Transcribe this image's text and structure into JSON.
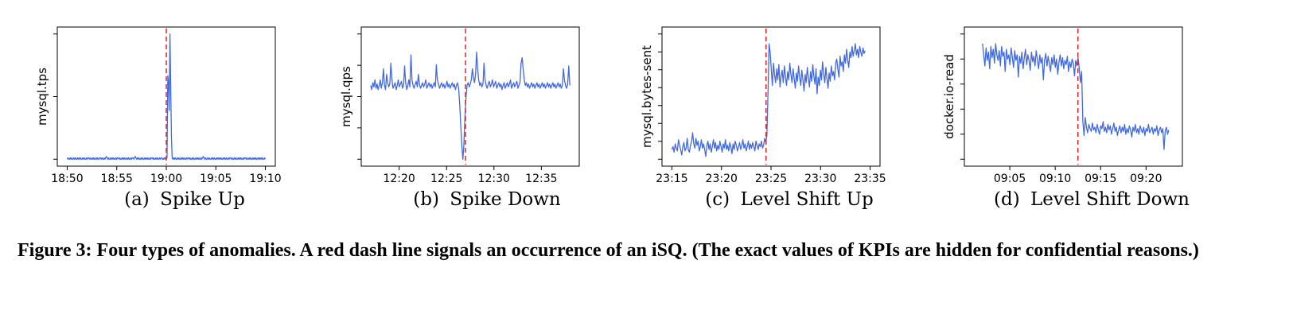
{
  "caption": "Figure 3:  Four types of anomalies.  A red dash line signals an occurrence of an iSQ. (The exact values of KPIs are hidden for confidential reasons.)",
  "colors": {
    "line": "#4169e1",
    "anomaly": "#e8251f",
    "axis": "#000000"
  },
  "chart_data": [
    {
      "type": "line",
      "subcaption_tag": "(a)",
      "subcaption": "Spike Up",
      "ylabel": "mysql.tps",
      "xticks": [
        "18:50",
        "18:55",
        "19:00",
        "19:05",
        "19:10"
      ],
      "x_range": [
        "18:49",
        "19:11"
      ],
      "y_range": [
        0,
        1
      ],
      "yticks_count": 3,
      "anomaly_at": "19:00",
      "series": [
        {
          "x_start": "18:50",
          "x_end": "19:10",
          "values": [
            0.05,
            0.06,
            0.05,
            0.05,
            0.06,
            0.05,
            0.06,
            0.05,
            0.05,
            0.06,
            0.05,
            0.06,
            0.05,
            0.05,
            0.06,
            0.05,
            0.06,
            0.05,
            0.06,
            0.05,
            0.05,
            0.06,
            0.05,
            0.06,
            0.05,
            0.05,
            0.06,
            0.05,
            0.06,
            0.06,
            0.05,
            0.06,
            0.05,
            0.05,
            0.06,
            0.05,
            0.06,
            0.05,
            0.05,
            0.06,
            0.05,
            0.06,
            0.05,
            0.05,
            0.06,
            0.06,
            0.05,
            0.06,
            0.05,
            0.05,
            0.06,
            0.05,
            0.06,
            0.07,
            0.06,
            0.05,
            0.06,
            0.05,
            0.05,
            0.06,
            0.05,
            0.06,
            0.05,
            0.06,
            0.05,
            0.05,
            0.06,
            0.05,
            0.06,
            0.06,
            0.05,
            0.06,
            0.05,
            0.05,
            0.06,
            0.05,
            0.06,
            0.05,
            0.06,
            0.05,
            0.05,
            0.06,
            0.05,
            0.06,
            0.05,
            0.05,
            0.06,
            0.05,
            0.06,
            0.06,
            0.05,
            0.06,
            0.07,
            0.06,
            0.05,
            0.06,
            0.05,
            0.06,
            0.05,
            0.05,
            0.06,
            0.05,
            0.06,
            0.05,
            0.05,
            0.06,
            0.05,
            0.06,
            0.05,
            0.06,
            0.05,
            0.05,
            0.06,
            0.05,
            0.06,
            0.06,
            0.05,
            0.06,
            0.05,
            0.05,
            0.06,
            0.05,
            0.06,
            0.05,
            0.05,
            0.06,
            0.05,
            0.06,
            0.06,
            0.05,
            0.05,
            0.06,
            0.05,
            0.06,
            0.05,
            0.06,
            0.65,
            0.6,
            0.4,
            0.95,
            0.55,
            0.2,
            0.06,
            0.05,
            0.06,
            0.05,
            0.06,
            0.05,
            0.05,
            0.06,
            0.05,
            0.06,
            0.05,
            0.05,
            0.06,
            0.05,
            0.06,
            0.05,
            0.06,
            0.05,
            0.05,
            0.06,
            0.05,
            0.06,
            0.06,
            0.05,
            0.06,
            0.05,
            0.05,
            0.06,
            0.05,
            0.06,
            0.05,
            0.05,
            0.06,
            0.05,
            0.06,
            0.05,
            0.06,
            0.05,
            0.05,
            0.06,
            0.05,
            0.06,
            0.07,
            0.06,
            0.05,
            0.06,
            0.05,
            0.05,
            0.06,
            0.05,
            0.06,
            0.05,
            0.05,
            0.06,
            0.05,
            0.06,
            0.05,
            0.06,
            0.05,
            0.05,
            0.06,
            0.05,
            0.06,
            0.05,
            0.06,
            0.05,
            0.06,
            0.05,
            0.05,
            0.06,
            0.05,
            0.06,
            0.05,
            0.06,
            0.05,
            0.05,
            0.06,
            0.05,
            0.06,
            0.06,
            0.05,
            0.06,
            0.05,
            0.05,
            0.06,
            0.05,
            0.06,
            0.05,
            0.05,
            0.06,
            0.05,
            0.06,
            0.05,
            0.06,
            0.05,
            0.05,
            0.06,
            0.05,
            0.06,
            0.06,
            0.05,
            0.06,
            0.05,
            0.05,
            0.06,
            0.05,
            0.06,
            0.05,
            0.05,
            0.06,
            0.05,
            0.06,
            0.05,
            0.06,
            0.05,
            0.05,
            0.06,
            0.05,
            0.06,
            0.05,
            0.06,
            0.05,
            0.06,
            0.05,
            0.05,
            0.06,
            0.05
          ]
        }
      ]
    },
    {
      "type": "line",
      "subcaption_tag": "(b)",
      "subcaption": "Spike Down",
      "ylabel": "mysql.qps",
      "xticks": [
        "12:20",
        "12:25",
        "12:30",
        "12:35"
      ],
      "x_range": [
        "12:16",
        "12:39"
      ],
      "y_range": [
        0,
        1
      ],
      "yticks_count": 5,
      "anomaly_at": "12:27",
      "series": [
        {
          "x_start": "12:17",
          "x_end": "12:38",
          "values": [
            0.58,
            0.55,
            0.6,
            0.57,
            0.62,
            0.56,
            0.59,
            0.55,
            0.58,
            0.62,
            0.56,
            0.6,
            0.7,
            0.58,
            0.55,
            0.66,
            0.6,
            0.57,
            0.59,
            0.74,
            0.63,
            0.56,
            0.58,
            0.6,
            0.55,
            0.58,
            0.62,
            0.57,
            0.59,
            0.61,
            0.56,
            0.58,
            0.72,
            0.6,
            0.55,
            0.58,
            0.62,
            0.57,
            0.8,
            0.62,
            0.58,
            0.56,
            0.59,
            0.61,
            0.57,
            0.66,
            0.59,
            0.56,
            0.58,
            0.6,
            0.57,
            0.59,
            0.62,
            0.56,
            0.58,
            0.6,
            0.57,
            0.59,
            0.56,
            0.58,
            0.6,
            0.57,
            0.73,
            0.62,
            0.59,
            0.56,
            0.58,
            0.6,
            0.57,
            0.59,
            0.56,
            0.58,
            0.61,
            0.57,
            0.59,
            0.56,
            0.58,
            0.6,
            0.57,
            0.59,
            0.55,
            0.58,
            0.6,
            0.56,
            0.45,
            0.3,
            0.15,
            0.05,
            0.15,
            0.35,
            0.5,
            0.58,
            0.6,
            0.57,
            0.59,
            0.62,
            0.7,
            0.64,
            0.6,
            0.66,
            0.82,
            0.7,
            0.62,
            0.58,
            0.6,
            0.57,
            0.59,
            0.74,
            0.62,
            0.58,
            0.56,
            0.59,
            0.61,
            0.57,
            0.59,
            0.62,
            0.57,
            0.59,
            0.61,
            0.56,
            0.58,
            0.6,
            0.57,
            0.59,
            0.55,
            0.58,
            0.6,
            0.56,
            0.58,
            0.6,
            0.57,
            0.59,
            0.62,
            0.56,
            0.58,
            0.6,
            0.57,
            0.59,
            0.61,
            0.56,
            0.58,
            0.6,
            0.74,
            0.78,
            0.7,
            0.62,
            0.58,
            0.6,
            0.57,
            0.59,
            0.56,
            0.58,
            0.6,
            0.57,
            0.59,
            0.56,
            0.58,
            0.6,
            0.57,
            0.59,
            0.56,
            0.58,
            0.6,
            0.57,
            0.59,
            0.56,
            0.58,
            0.6,
            0.57,
            0.59,
            0.56,
            0.58,
            0.6,
            0.57,
            0.59,
            0.56,
            0.58,
            0.6,
            0.57,
            0.59,
            0.56,
            0.58,
            0.7,
            0.62,
            0.58,
            0.56,
            0.59,
            0.72,
            0.58
          ]
        }
      ]
    },
    {
      "type": "line",
      "subcaption_tag": "(c)",
      "subcaption": "Level Shift Up",
      "ylabel": "mysql.bytes-sent",
      "xticks": [
        "23:15",
        "23:20",
        "23:25",
        "23:30",
        "23:35"
      ],
      "x_range": [
        "23:14",
        "23:36"
      ],
      "y_range": [
        0,
        1
      ],
      "yticks_count": 8,
      "anomaly_at": "23:24.5",
      "series": [
        {
          "x_start": "23:15",
          "x_end": "23:34.5",
          "values": [
            0.12,
            0.14,
            0.1,
            0.16,
            0.13,
            0.11,
            0.19,
            0.15,
            0.12,
            0.08,
            0.14,
            0.17,
            0.11,
            0.13,
            0.2,
            0.12,
            0.1,
            0.15,
            0.18,
            0.24,
            0.16,
            0.13,
            0.2,
            0.15,
            0.18,
            0.11,
            0.14,
            0.19,
            0.13,
            0.16,
            0.12,
            0.07,
            0.15,
            0.18,
            0.12,
            0.16,
            0.1,
            0.14,
            0.19,
            0.13,
            0.17,
            0.11,
            0.15,
            0.12,
            0.18,
            0.14,
            0.1,
            0.16,
            0.13,
            0.19,
            0.12,
            0.15,
            0.11,
            0.17,
            0.14,
            0.09,
            0.16,
            0.12,
            0.18,
            0.15,
            0.11,
            0.14,
            0.17,
            0.12,
            0.15,
            0.19,
            0.13,
            0.16,
            0.11,
            0.14,
            0.18,
            0.12,
            0.16,
            0.13,
            0.17,
            0.14,
            0.11,
            0.18,
            0.15,
            0.12,
            0.16,
            0.14,
            0.18,
            0.13,
            0.15,
            0.2,
            0.17,
            0.22,
            0.52,
            0.88,
            0.82,
            0.7,
            0.58,
            0.74,
            0.66,
            0.6,
            0.7,
            0.62,
            0.73,
            0.57,
            0.65,
            0.69,
            0.6,
            0.72,
            0.64,
            0.58,
            0.68,
            0.62,
            0.74,
            0.66,
            0.6,
            0.7,
            0.63,
            0.56,
            0.67,
            0.61,
            0.72,
            0.64,
            0.58,
            0.69,
            0.62,
            0.54,
            0.66,
            0.6,
            0.71,
            0.63,
            0.57,
            0.68,
            0.61,
            0.73,
            0.65,
            0.59,
            0.7,
            0.52,
            0.64,
            0.58,
            0.69,
            0.62,
            0.75,
            0.66,
            0.6,
            0.71,
            0.63,
            0.56,
            0.67,
            0.61,
            0.72,
            0.65,
            0.68,
            0.62,
            0.74,
            0.77,
            0.7,
            0.64,
            0.79,
            0.72,
            0.75,
            0.68,
            0.8,
            0.74,
            0.84,
            0.76,
            0.71,
            0.82,
            0.78,
            0.86,
            0.79,
            0.83,
            0.88,
            0.8,
            0.84,
            0.78,
            0.86,
            0.82,
            0.79,
            0.85,
            0.81,
            0.83
          ]
        }
      ]
    },
    {
      "type": "line",
      "subcaption_tag": "(d)",
      "subcaption": "Level Shift Down",
      "ylabel": "docker.io-read",
      "xticks": [
        "09:05",
        "09:10",
        "09:15",
        "09:20"
      ],
      "x_range": [
        "09:00",
        "09:24"
      ],
      "y_range": [
        0,
        1
      ],
      "yticks_count": 6,
      "anomaly_at": "09:12.5",
      "series": [
        {
          "x_start": "09:02",
          "x_end": "09:22.5",
          "values": [
            0.88,
            0.8,
            0.72,
            0.85,
            0.76,
            0.82,
            0.7,
            0.86,
            0.78,
            0.84,
            0.74,
            0.88,
            0.8,
            0.76,
            0.83,
            0.72,
            0.86,
            0.79,
            0.82,
            0.68,
            0.84,
            0.77,
            0.8,
            0.73,
            0.85,
            0.78,
            0.71,
            0.83,
            0.76,
            0.8,
            0.64,
            0.79,
            0.74,
            0.82,
            0.7,
            0.78,
            0.84,
            0.73,
            0.8,
            0.76,
            0.69,
            0.82,
            0.75,
            0.79,
            0.72,
            0.83,
            0.77,
            0.7,
            0.8,
            0.74,
            0.78,
            0.62,
            0.76,
            0.81,
            0.72,
            0.79,
            0.74,
            0.68,
            0.78,
            0.73,
            0.8,
            0.71,
            0.77,
            0.66,
            0.75,
            0.8,
            0.72,
            0.78,
            0.7,
            0.76,
            0.73,
            0.79,
            0.68,
            0.75,
            0.71,
            0.77,
            0.74,
            0.65,
            0.76,
            0.72,
            0.78,
            0.7,
            0.6,
            0.68,
            0.32,
            0.22,
            0.35,
            0.28,
            0.24,
            0.3,
            0.27,
            0.25,
            0.31,
            0.26,
            0.28,
            0.24,
            0.3,
            0.26,
            0.23,
            0.29,
            0.27,
            0.32,
            0.25,
            0.28,
            0.24,
            0.3,
            0.26,
            0.29,
            0.23,
            0.27,
            0.31,
            0.25,
            0.28,
            0.22,
            0.26,
            0.29,
            0.24,
            0.28,
            0.25,
            0.3,
            0.23,
            0.27,
            0.24,
            0.29,
            0.26,
            0.21,
            0.28,
            0.25,
            0.3,
            0.24,
            0.27,
            0.23,
            0.29,
            0.26,
            0.24,
            0.28,
            0.22,
            0.27,
            0.25,
            0.3,
            0.24,
            0.26,
            0.28,
            0.23,
            0.27,
            0.25,
            0.29,
            0.22,
            0.26,
            0.28,
            0.24,
            0.27,
            0.12,
            0.25,
            0.28,
            0.23,
            0.26
          ]
        }
      ]
    }
  ]
}
